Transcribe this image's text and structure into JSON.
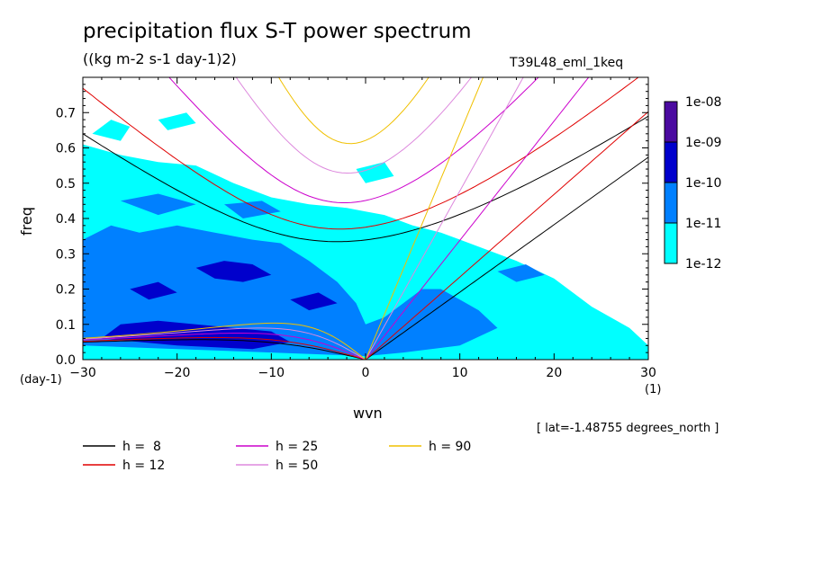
{
  "chart_data": {
    "type": "heatmap",
    "title": "precipitation flux S-T power spectrum",
    "subtitle": "((kg m-2 s-1 day-1)2)",
    "run_label": "T39L48_eml_1keq",
    "xlabel": "wvn",
    "ylabel": "freq",
    "x_unit": "(1)",
    "y_unit": "(day-1)",
    "note": "[ lat=-1.48755 degrees_north ]",
    "xlim": [
      -30,
      30
    ],
    "ylim": [
      0,
      0.8
    ],
    "x_ticks": [
      -30,
      -20,
      -10,
      0,
      10,
      20,
      30
    ],
    "x_tick_labels": [
      "−30",
      "−20",
      "−10",
      "0",
      "10",
      "20",
      "30"
    ],
    "y_ticks": [
      0,
      0.1,
      0.2,
      0.3,
      0.4,
      0.5,
      0.6,
      0.7
    ],
    "y_tick_labels": [
      "0.0",
      "0.1",
      "0.2",
      "0.3",
      "0.4",
      "0.5",
      "0.6",
      "0.7"
    ],
    "colorbar": {
      "levels": [
        "1e-12",
        "1e-11",
        "1e-10",
        "1e-09",
        "1e-08"
      ],
      "colors": [
        "#00ffff",
        "#0080ff",
        "#0000cc",
        "#4b0aa0"
      ]
    },
    "dispersion_curves": [
      {
        "label": "h =  8",
        "h": 8,
        "color": "#000000"
      },
      {
        "label": "h = 12",
        "h": 12,
        "color": "#e00000"
      },
      {
        "label": "h = 25",
        "h": 25,
        "color": "#cc00cc"
      },
      {
        "label": "h = 50",
        "h": 50,
        "color": "#dd88dd"
      },
      {
        "label": "h = 90",
        "h": 90,
        "color": "#f0c000"
      }
    ],
    "spectrum_regions": [
      {
        "level": "1e-12",
        "polygon": [
          [
            -30,
            0
          ],
          [
            -30,
            0.61
          ],
          [
            -26,
            0.58
          ],
          [
            -22,
            0.56
          ],
          [
            -18,
            0.55
          ],
          [
            -14,
            0.5
          ],
          [
            -10,
            0.46
          ],
          [
            -6,
            0.44
          ],
          [
            -2,
            0.43
          ],
          [
            0,
            0.42
          ],
          [
            2,
            0.41
          ],
          [
            5,
            0.38
          ],
          [
            8,
            0.36
          ],
          [
            12,
            0.32
          ],
          [
            16,
            0.28
          ],
          [
            20,
            0.23
          ],
          [
            24,
            0.15
          ],
          [
            28,
            0.09
          ],
          [
            30,
            0.04
          ],
          [
            30,
            0
          ]
        ]
      },
      {
        "level": "1e-12",
        "polygon": [
          [
            -29,
            0.64
          ],
          [
            -27,
            0.68
          ],
          [
            -25,
            0.66
          ],
          [
            -26,
            0.62
          ]
        ]
      },
      {
        "level": "1e-12",
        "polygon": [
          [
            -22,
            0.68
          ],
          [
            -19,
            0.7
          ],
          [
            -18,
            0.67
          ],
          [
            -21,
            0.65
          ]
        ]
      },
      {
        "level": "1e-12",
        "polygon": [
          [
            -1,
            0.54
          ],
          [
            2,
            0.56
          ],
          [
            3,
            0.52
          ],
          [
            0,
            0.5
          ]
        ]
      },
      {
        "level": "1e-11",
        "polygon": [
          [
            -30,
            0.04
          ],
          [
            -30,
            0.34
          ],
          [
            -27,
            0.38
          ],
          [
            -24,
            0.36
          ],
          [
            -20,
            0.38
          ],
          [
            -16,
            0.36
          ],
          [
            -12,
            0.34
          ],
          [
            -9,
            0.33
          ],
          [
            -6,
            0.28
          ],
          [
            -3,
            0.22
          ],
          [
            -1,
            0.16
          ],
          [
            0,
            0.1
          ],
          [
            2,
            0.12
          ],
          [
            4,
            0.16
          ],
          [
            6,
            0.2
          ],
          [
            8,
            0.2
          ],
          [
            10,
            0.17
          ],
          [
            12,
            0.14
          ],
          [
            14,
            0.09
          ],
          [
            10,
            0.04
          ],
          [
            4,
            0.02
          ],
          [
            0,
            0.01
          ],
          [
            -10,
            0.02
          ],
          [
            -20,
            0.03
          ]
        ]
      },
      {
        "level": "1e-11",
        "polygon": [
          [
            -26,
            0.45
          ],
          [
            -22,
            0.47
          ],
          [
            -18,
            0.44
          ],
          [
            -22,
            0.41
          ]
        ]
      },
      {
        "level": "1e-11",
        "polygon": [
          [
            -15,
            0.44
          ],
          [
            -11,
            0.45
          ],
          [
            -9,
            0.42
          ],
          [
            -13,
            0.4
          ]
        ]
      },
      {
        "level": "1e-11",
        "polygon": [
          [
            14,
            0.25
          ],
          [
            17,
            0.27
          ],
          [
            19,
            0.24
          ],
          [
            16,
            0.22
          ]
        ]
      },
      {
        "level": "1e-10",
        "polygon": [
          [
            -28,
            0.06
          ],
          [
            -26,
            0.1
          ],
          [
            -22,
            0.11
          ],
          [
            -18,
            0.1
          ],
          [
            -14,
            0.09
          ],
          [
            -10,
            0.08
          ],
          [
            -8,
            0.05
          ],
          [
            -12,
            0.03
          ],
          [
            -20,
            0.04
          ]
        ]
      },
      {
        "level": "1e-10",
        "polygon": [
          [
            -18,
            0.26
          ],
          [
            -15,
            0.28
          ],
          [
            -12,
            0.27
          ],
          [
            -10,
            0.24
          ],
          [
            -13,
            0.22
          ],
          [
            -16,
            0.23
          ]
        ]
      },
      {
        "level": "1e-10",
        "polygon": [
          [
            -8,
            0.17
          ],
          [
            -5,
            0.19
          ],
          [
            -3,
            0.16
          ],
          [
            -6,
            0.14
          ]
        ]
      },
      {
        "level": "1e-10",
        "polygon": [
          [
            -25,
            0.2
          ],
          [
            -22,
            0.22
          ],
          [
            -20,
            0.19
          ],
          [
            -23,
            0.17
          ]
        ]
      }
    ]
  },
  "legend": {
    "items": [
      {
        "label": "h =  8",
        "color": "#000000"
      },
      {
        "label": "h = 12",
        "color": "#e00000"
      },
      {
        "label": "h = 25",
        "color": "#cc00cc"
      },
      {
        "label": "h = 50",
        "color": "#dd88dd"
      },
      {
        "label": "h = 90",
        "color": "#f0c000"
      }
    ]
  }
}
